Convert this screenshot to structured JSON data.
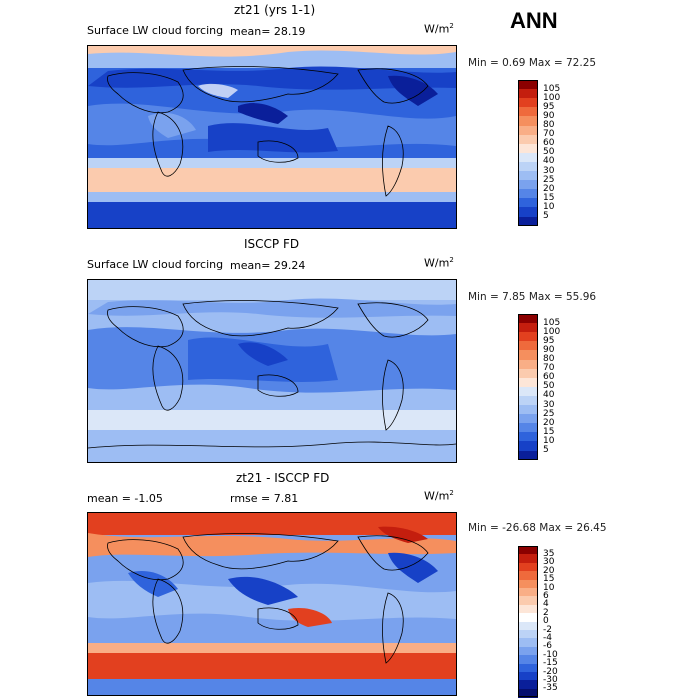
{
  "season": "ANN",
  "panels": [
    {
      "id": "model",
      "title": "zt21 (yrs 1-1)",
      "subtitle": "Surface LW cloud forcing",
      "stat": "mean=  28.19",
      "units_base": "W/m",
      "units_exp": "2",
      "minmax": "Min =   0.69 Max =  72.25",
      "colorbar_labels": [
        "105",
        "100",
        "95",
        "90",
        "80",
        "70",
        "60",
        "50",
        "40",
        "30",
        "25",
        "20",
        "15",
        "10",
        "5"
      ],
      "colorbar_colors": [
        "#8b0000",
        "#c41e0e",
        "#e2401f",
        "#ef6a3c",
        "#f58f5e",
        "#f9ae86",
        "#fbcbae",
        "#fde6d8",
        "#dbe7f8",
        "#bcd3f6",
        "#9dbdf3",
        "#7aa2ee",
        "#5585e7",
        "#2f63dc",
        "#1741c7",
        "#0a1f9a"
      ]
    },
    {
      "id": "obs",
      "title": "ISCCP FD",
      "subtitle": "Surface LW cloud forcing",
      "stat": "mean=  29.24",
      "units_base": "W/m",
      "units_exp": "2",
      "minmax": "Min =   7.85 Max =  55.96",
      "colorbar_labels": [
        "105",
        "100",
        "95",
        "90",
        "80",
        "70",
        "60",
        "50",
        "40",
        "30",
        "25",
        "20",
        "15",
        "10",
        "5"
      ],
      "colorbar_colors": [
        "#8b0000",
        "#c41e0e",
        "#e2401f",
        "#ef6a3c",
        "#f58f5e",
        "#f9ae86",
        "#fbcbae",
        "#fde6d8",
        "#dbe7f8",
        "#bcd3f6",
        "#9dbdf3",
        "#7aa2ee",
        "#5585e7",
        "#2f63dc",
        "#1741c7",
        "#0a1f9a"
      ]
    },
    {
      "id": "diff",
      "title": "zt21 - ISCCP FD",
      "stat_mean": "mean =  -1.05",
      "stat_rmse": "rmse =   7.81",
      "units_base": "W/m",
      "units_exp": "2",
      "minmax": "Min = -26.68 Max =  26.45",
      "colorbar_labels": [
        "35",
        "30",
        "20",
        "15",
        "10",
        "6",
        "4",
        "2",
        "0",
        "-2",
        "-4",
        "-6",
        "-10",
        "-15",
        "-20",
        "-30",
        "-35"
      ],
      "colorbar_colors": [
        "#8b0000",
        "#c41e0e",
        "#e2401f",
        "#ef6a3c",
        "#f58f5e",
        "#f9ae86",
        "#fbcbae",
        "#fde6d8",
        "#ffffff",
        "#dbe7f8",
        "#bcd3f6",
        "#9dbdf3",
        "#7aa2ee",
        "#5585e7",
        "#2f63dc",
        "#1741c7",
        "#0a1f9a",
        "#050e6e"
      ]
    }
  ]
}
